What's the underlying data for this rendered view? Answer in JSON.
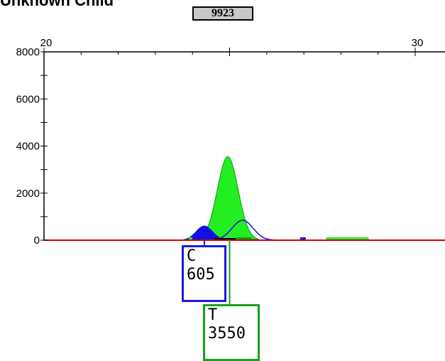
{
  "header": {
    "title": "Unknown Child",
    "marker_value": "9923"
  },
  "colors": {
    "c_peak": "#1010e0",
    "t_peak": "#22ee22",
    "baseline": "#dd0000",
    "c_box": "#1a1adc",
    "t_box": "#1aa01a"
  },
  "chart_data": {
    "type": "area",
    "title": "",
    "xlabel": "",
    "ylabel": "",
    "x_axis_position": "top",
    "xlim": [
      20,
      31
    ],
    "ylim": [
      0,
      8000
    ],
    "x_ticks": [
      20,
      30
    ],
    "y_ticks": [
      0,
      2000,
      4000,
      6000,
      8000
    ],
    "series": [
      {
        "name": "T",
        "color": "#22ee22",
        "peaks": [
          {
            "center": 24.95,
            "height": 3550,
            "width": 0.28
          }
        ]
      },
      {
        "name": "C",
        "color": "#1010e0",
        "peaks": [
          {
            "center": 24.32,
            "height": 605,
            "width": 0.22
          },
          {
            "center": 25.35,
            "height": 850,
            "width": 0.28,
            "outline_only": true
          }
        ]
      }
    ],
    "calls": [
      {
        "base": "C",
        "value": "605",
        "x": 24.32
      },
      {
        "base": "T",
        "value": "3550",
        "x": 25.0
      }
    ]
  }
}
